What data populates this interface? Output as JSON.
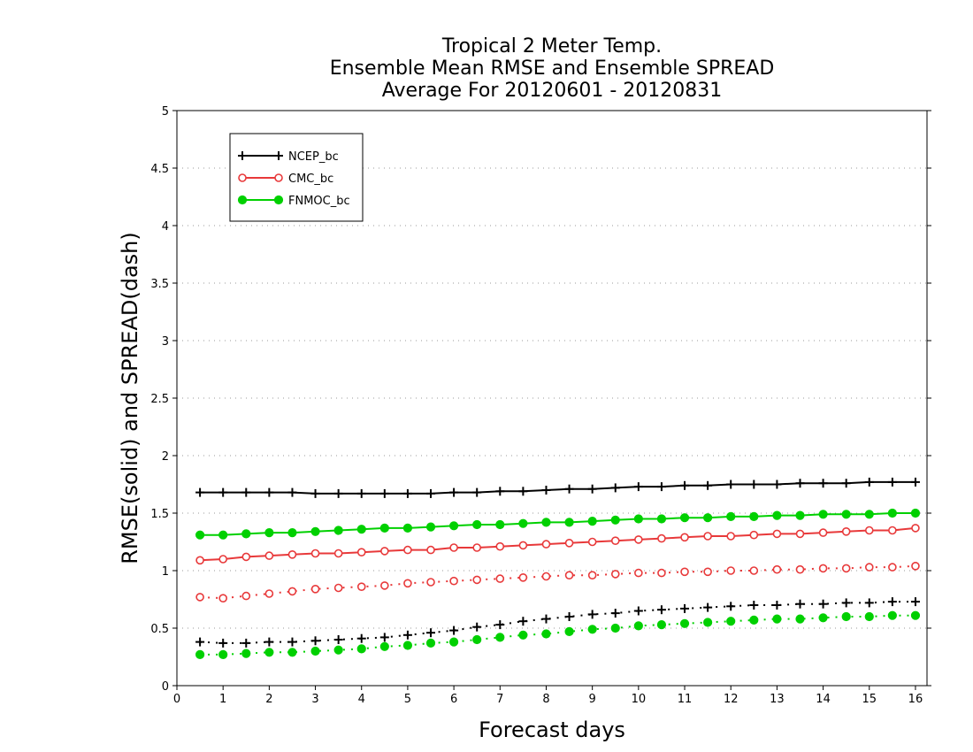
{
  "chart_data": {
    "type": "line",
    "title": [
      "Tropical 2 Meter Temp.",
      "Ensemble Mean RMSE and Ensemble SPREAD",
      "Average For 20120601 - 20120831"
    ],
    "xlabel": "Forecast days",
    "ylabel": "RMSE(solid) and SPREAD(dash)",
    "xlim": [
      0,
      16.25
    ],
    "ylim": [
      0,
      5
    ],
    "xticks": [
      0,
      1,
      2,
      3,
      4,
      5,
      6,
      7,
      8,
      9,
      10,
      11,
      12,
      13,
      14,
      15,
      16
    ],
    "yticks": [
      0,
      0.5,
      1,
      1.5,
      2,
      2.5,
      3,
      3.5,
      4,
      4.5,
      5
    ],
    "ytick_labels": [
      "0",
      "0.5",
      "1",
      "1.5",
      "2",
      "2.5",
      "3",
      "3.5",
      "4",
      "4.5",
      "5"
    ],
    "grid": "horizontal dotted",
    "legend_position": "top-left",
    "x": [
      0.5,
      1,
      1.5,
      2,
      2.5,
      3,
      3.5,
      4,
      4.5,
      5,
      5.5,
      6,
      6.5,
      7,
      7.5,
      8,
      8.5,
      9,
      9.5,
      10,
      10.5,
      11,
      11.5,
      12,
      12.5,
      13,
      13.5,
      14,
      14.5,
      15,
      15.5,
      16
    ],
    "series": [
      {
        "name": "NCEP_bc",
        "color": "#000000",
        "marker": "plus",
        "rmse": [
          1.68,
          1.68,
          1.68,
          1.68,
          1.68,
          1.67,
          1.67,
          1.67,
          1.67,
          1.67,
          1.67,
          1.68,
          1.68,
          1.69,
          1.69,
          1.7,
          1.71,
          1.71,
          1.72,
          1.73,
          1.73,
          1.74,
          1.74,
          1.75,
          1.75,
          1.75,
          1.76,
          1.76,
          1.76,
          1.77,
          1.77,
          1.77
        ],
        "spread": [
          0.38,
          0.37,
          0.37,
          0.38,
          0.38,
          0.39,
          0.4,
          0.41,
          0.42,
          0.44,
          0.46,
          0.48,
          0.51,
          0.53,
          0.56,
          0.58,
          0.6,
          0.62,
          0.63,
          0.65,
          0.66,
          0.67,
          0.68,
          0.69,
          0.7,
          0.7,
          0.71,
          0.71,
          0.72,
          0.72,
          0.73,
          0.73
        ]
      },
      {
        "name": "CMC_bc",
        "color": "#e8393a",
        "marker": "open-circle",
        "rmse": [
          1.09,
          1.1,
          1.12,
          1.13,
          1.14,
          1.15,
          1.15,
          1.16,
          1.17,
          1.18,
          1.18,
          1.2,
          1.2,
          1.21,
          1.22,
          1.23,
          1.24,
          1.25,
          1.26,
          1.27,
          1.28,
          1.29,
          1.3,
          1.3,
          1.31,
          1.32,
          1.32,
          1.33,
          1.34,
          1.35,
          1.35,
          1.37
        ],
        "spread": [
          0.77,
          0.76,
          0.78,
          0.8,
          0.82,
          0.84,
          0.85,
          0.86,
          0.87,
          0.89,
          0.9,
          0.91,
          0.92,
          0.93,
          0.94,
          0.95,
          0.96,
          0.96,
          0.97,
          0.98,
          0.98,
          0.99,
          0.99,
          1.0,
          1.0,
          1.01,
          1.01,
          1.02,
          1.02,
          1.03,
          1.03,
          1.04
        ]
      },
      {
        "name": "FNMOC_bc",
        "color": "#00d000",
        "marker": "filled-circle",
        "rmse": [
          1.31,
          1.31,
          1.32,
          1.33,
          1.33,
          1.34,
          1.35,
          1.36,
          1.37,
          1.37,
          1.38,
          1.39,
          1.4,
          1.4,
          1.41,
          1.42,
          1.42,
          1.43,
          1.44,
          1.45,
          1.45,
          1.46,
          1.46,
          1.47,
          1.47,
          1.48,
          1.48,
          1.49,
          1.49,
          1.49,
          1.5,
          1.5
        ],
        "spread": [
          0.27,
          0.27,
          0.28,
          0.29,
          0.29,
          0.3,
          0.31,
          0.32,
          0.34,
          0.35,
          0.37,
          0.38,
          0.4,
          0.42,
          0.44,
          0.45,
          0.47,
          0.49,
          0.5,
          0.52,
          0.53,
          0.54,
          0.55,
          0.56,
          0.57,
          0.58,
          0.58,
          0.59,
          0.6,
          0.6,
          0.61,
          0.61
        ]
      }
    ]
  }
}
